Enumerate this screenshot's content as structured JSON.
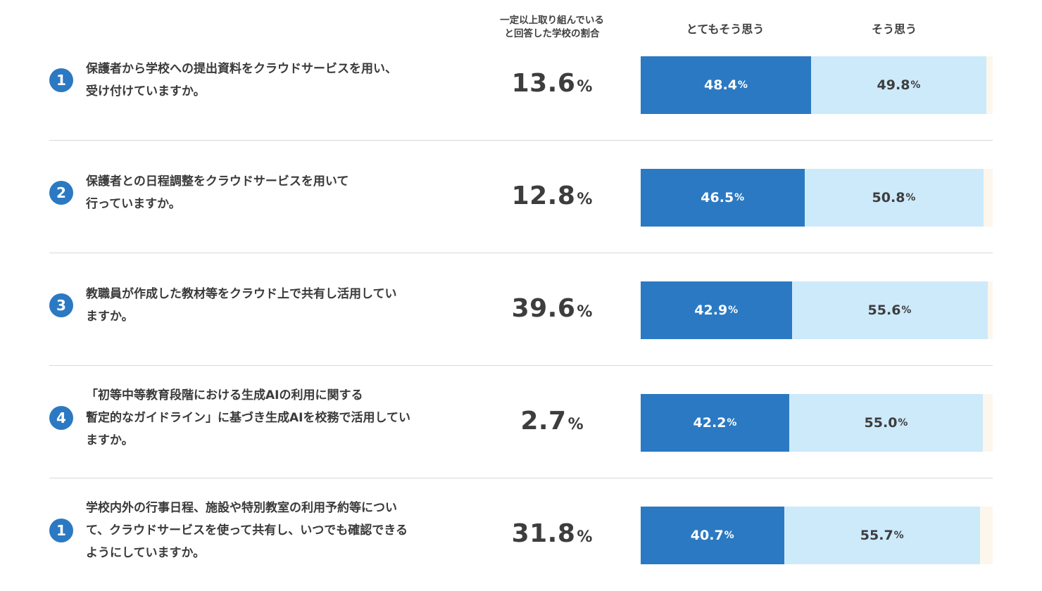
{
  "headers": {
    "rate_line1": "一定以上取り組んでいる",
    "rate_line2": "と回答した学校の割合",
    "strongly_agree": "とてもそう思う",
    "agree": "そう思う"
  },
  "percent_sign": "%",
  "colors": {
    "strongly_agree": "#2b79c2",
    "agree": "#cdeafb",
    "remainder": "#fdf6ec",
    "badge": "#2b79c2"
  },
  "rows": [
    {
      "number": "1",
      "question_lines": [
        "保護者から学校への提出資料をクラウドサービスを用い、",
        "受け付けていますか。"
      ],
      "rate": "13.6",
      "strongly_agree": "48.4",
      "agree": "49.8"
    },
    {
      "number": "2",
      "question_lines": [
        "保護者との日程調整をクラウドサービスを用いて",
        "行っていますか。"
      ],
      "rate": "12.8",
      "strongly_agree": "46.5",
      "agree": "50.8"
    },
    {
      "number": "3",
      "question_lines": [
        "教職員が作成した教材等をクラウド上で共有し活用してい",
        "ますか。"
      ],
      "rate": "39.6",
      "strongly_agree": "42.9",
      "agree": "55.6"
    },
    {
      "number": "4",
      "question_lines": [
        "「初等中等教育段階における生成AIの利用に関する",
        "暫定的なガイドライン」に基づき生成AIを校務で活用してい",
        "ますか。"
      ],
      "rate": "2.7",
      "strongly_agree": "42.2",
      "agree": "55.0"
    },
    {
      "number": "1",
      "question_lines": [
        "学校内外の行事日程、施設や特別教室の利用予約等につい",
        "て、クラウドサービスを使って共有し、いつでも確認できる",
        "ようにしていますか。"
      ],
      "rate": "31.8",
      "strongly_agree": "40.7",
      "agree": "55.7"
    }
  ],
  "chart_data": {
    "type": "bar",
    "orientation": "horizontal",
    "stacked": true,
    "xlim": [
      0,
      100
    ],
    "categories": [
      "1",
      "2",
      "3",
      "4",
      "1"
    ],
    "series": [
      {
        "name": "とてもそう思う",
        "values": [
          48.4,
          46.5,
          42.9,
          42.2,
          40.7
        ]
      },
      {
        "name": "そう思う",
        "values": [
          49.8,
          50.8,
          55.6,
          55.0,
          55.7
        ]
      }
    ],
    "rate_column": {
      "label": "一定以上取り組んでいると回答した学校の割合",
      "values": [
        13.6,
        12.8,
        39.6,
        2.7,
        31.8
      ]
    }
  }
}
